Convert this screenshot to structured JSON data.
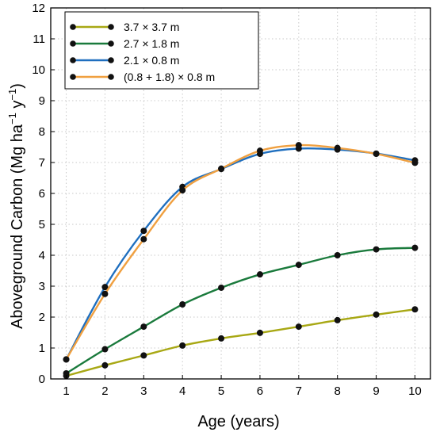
{
  "chart_data": {
    "type": "line",
    "x": [
      1,
      2,
      3,
      4,
      5,
      6,
      7,
      8,
      9,
      10
    ],
    "xlabel": "Age (years)",
    "ylabel_main": "Aboveground Carbon (Mg ha",
    "ylabel_sup1": "−1",
    "ylabel_mid": " y",
    "ylabel_sup2": "−1",
    "ylabel_end": ")",
    "xlim": [
      0.6,
      10.4
    ],
    "ylim": [
      0,
      12
    ],
    "xticks": [
      1,
      2,
      3,
      4,
      5,
      6,
      7,
      8,
      9,
      10
    ],
    "yticks": [
      0,
      1,
      2,
      3,
      4,
      5,
      6,
      7,
      8,
      9,
      10,
      11,
      12
    ],
    "grid": true,
    "legend_position": "top-left",
    "series": [
      {
        "name": "3.7 × 3.7 m",
        "color": "#a8a814",
        "values": [
          0.1,
          0.44,
          0.76,
          1.08,
          1.31,
          1.49,
          1.69,
          1.9,
          2.08,
          2.25
        ]
      },
      {
        "name": "2.7 × 1.8 m",
        "color": "#1a7a3c",
        "values": [
          0.18,
          0.96,
          1.69,
          2.41,
          2.95,
          3.38,
          3.69,
          4.0,
          4.19,
          4.24
        ]
      },
      {
        "name": "2.1 × 0.8 m",
        "color": "#1f6fbf",
        "values": [
          0.63,
          2.97,
          4.79,
          6.21,
          6.79,
          7.28,
          7.45,
          7.42,
          7.29,
          7.07
        ]
      },
      {
        "name": "(0.8 + 1.8) × 0.8 m",
        "color": "#f0a040",
        "values": [
          0.63,
          2.75,
          4.52,
          6.1,
          6.8,
          7.38,
          7.56,
          7.47,
          7.28,
          6.99
        ]
      }
    ]
  }
}
